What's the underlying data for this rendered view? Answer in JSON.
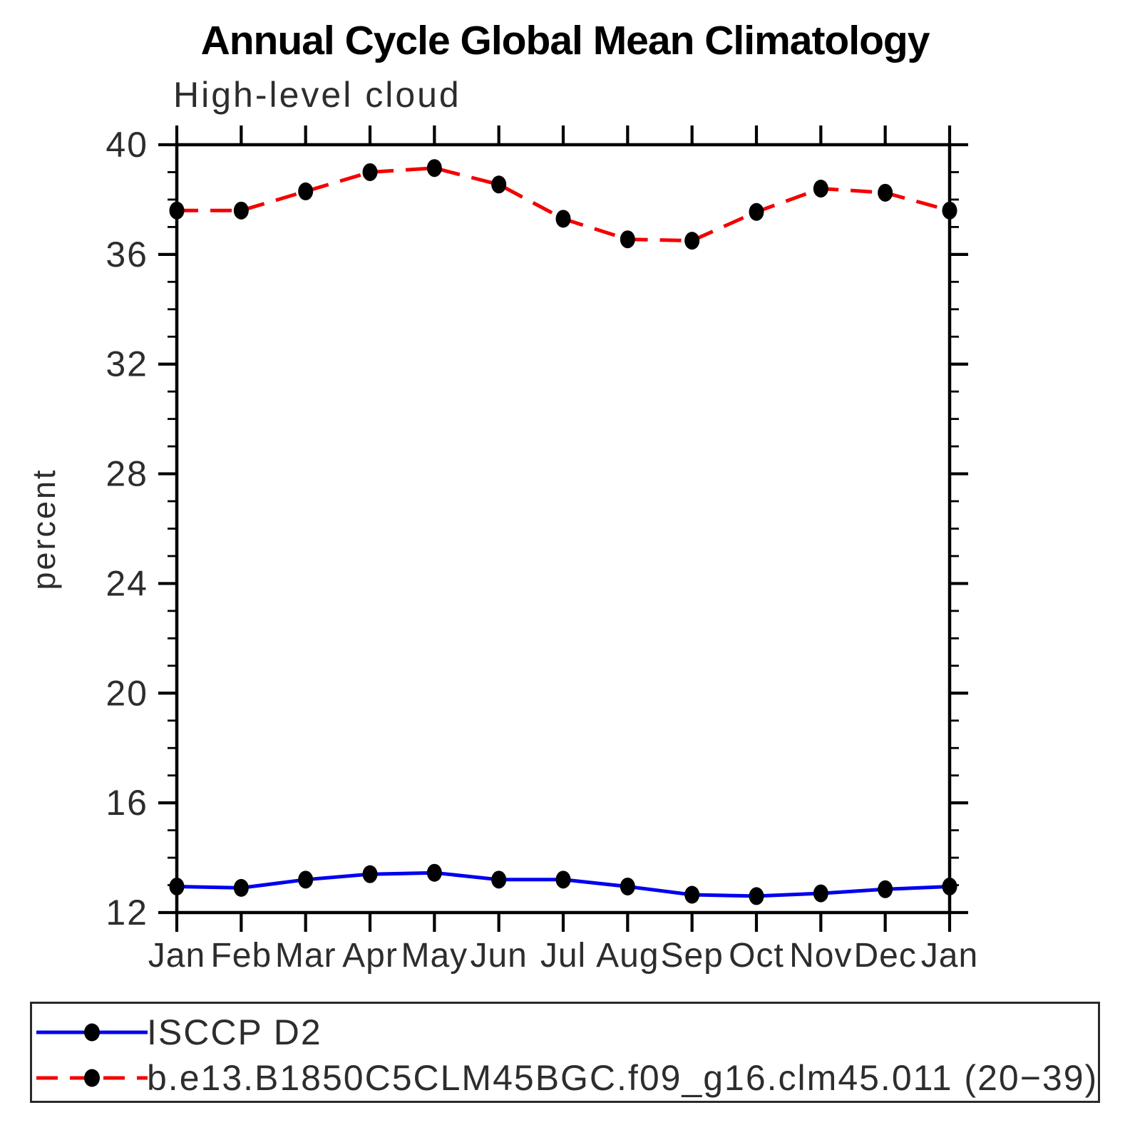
{
  "chart": {
    "title": "Annual Cycle Global Mean Climatology",
    "subtitle": "High-level cloud",
    "ylabel": "percent"
  },
  "chart_data": {
    "type": "line",
    "title": "Annual Cycle Global Mean Climatology",
    "subtitle": "High-level cloud",
    "ylabel": "percent",
    "xlabel": "",
    "categories": [
      "Jan",
      "Feb",
      "Mar",
      "Apr",
      "May",
      "Jun",
      "Jul",
      "Aug",
      "Sep",
      "Oct",
      "Nov",
      "Dec",
      "Jan"
    ],
    "series": [
      {
        "name": "ISCCP D2",
        "color": "#0000ee",
        "line_style": "solid",
        "marker": "filled-circle",
        "marker_color": "#000000",
        "values": [
          12.95,
          12.9,
          13.2,
          13.4,
          13.45,
          13.2,
          13.2,
          12.95,
          12.65,
          12.6,
          12.7,
          12.85,
          12.95
        ]
      },
      {
        "name": "b.e13.B1850C5CLM45BGC.f09_g16.clm45.011 (20−39)",
        "color": "#f40000",
        "line_style": "dashed",
        "marker": "filled-circle",
        "marker_color": "#000000",
        "values": [
          37.6,
          37.6,
          38.3,
          39.0,
          39.15,
          38.55,
          37.3,
          36.55,
          36.5,
          37.55,
          38.4,
          38.25,
          37.6
        ]
      }
    ],
    "ylim": [
      12,
      40
    ],
    "yticks_major": [
      12,
      16,
      20,
      24,
      28,
      32,
      36,
      40
    ],
    "ytick_minor_step": 1,
    "grid": false,
    "legend_position": "bottom",
    "frame_color": "#000000",
    "tick_direction": "out"
  }
}
